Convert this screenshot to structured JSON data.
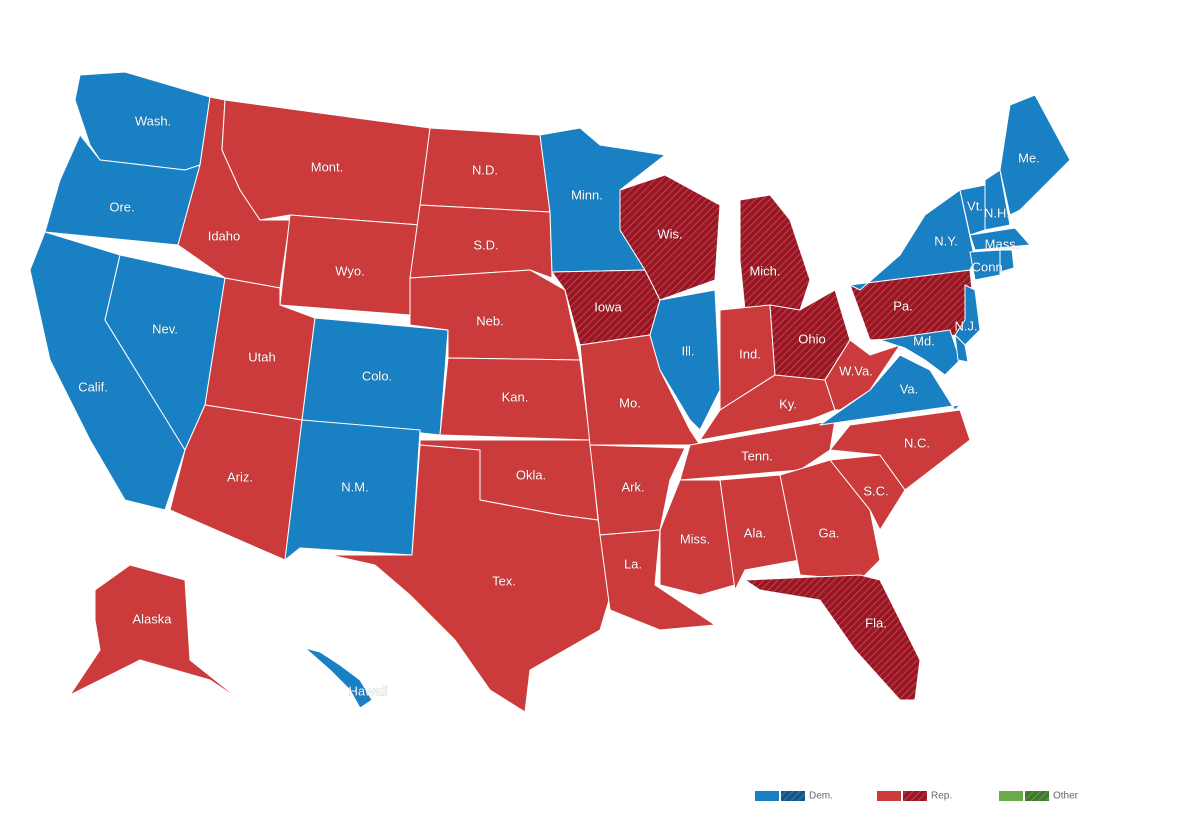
{
  "map": {
    "colors": {
      "dem": "#1a80c4",
      "rep": "#cc3b3b",
      "other": "#6aaa4b"
    },
    "flipped_colors": {
      "dem": "#11568a",
      "rep": "#9b1622",
      "other": "#3f7a2b"
    },
    "states": [
      {
        "label": "Wash.",
        "party": "dem",
        "flipped": false
      },
      {
        "label": "Ore.",
        "party": "dem",
        "flipped": false
      },
      {
        "label": "Calif.",
        "party": "dem",
        "flipped": false
      },
      {
        "label": "Nev.",
        "party": "dem",
        "flipped": false
      },
      {
        "label": "Idaho",
        "party": "rep",
        "flipped": false
      },
      {
        "label": "Mont.",
        "party": "rep",
        "flipped": false
      },
      {
        "label": "Wyo.",
        "party": "rep",
        "flipped": false
      },
      {
        "label": "Utah",
        "party": "rep",
        "flipped": false
      },
      {
        "label": "Colo.",
        "party": "dem",
        "flipped": false
      },
      {
        "label": "Ariz.",
        "party": "rep",
        "flipped": false
      },
      {
        "label": "N.M.",
        "party": "dem",
        "flipped": false
      },
      {
        "label": "N.D.",
        "party": "rep",
        "flipped": false
      },
      {
        "label": "S.D.",
        "party": "rep",
        "flipped": false
      },
      {
        "label": "Neb.",
        "party": "rep",
        "flipped": false
      },
      {
        "label": "Kan.",
        "party": "rep",
        "flipped": false
      },
      {
        "label": "Okla.",
        "party": "rep",
        "flipped": false
      },
      {
        "label": "Tex.",
        "party": "rep",
        "flipped": false
      },
      {
        "label": "Minn.",
        "party": "dem",
        "flipped": false
      },
      {
        "label": "Iowa",
        "party": "rep",
        "flipped": true
      },
      {
        "label": "Mo.",
        "party": "rep",
        "flipped": false
      },
      {
        "label": "Ark.",
        "party": "rep",
        "flipped": false
      },
      {
        "label": "La.",
        "party": "rep",
        "flipped": false
      },
      {
        "label": "Wis.",
        "party": "rep",
        "flipped": true
      },
      {
        "label": "Ill.",
        "party": "dem",
        "flipped": false
      },
      {
        "label": "Mich.",
        "party": "rep",
        "flipped": true
      },
      {
        "label": "Ind.",
        "party": "rep",
        "flipped": false
      },
      {
        "label": "Ohio",
        "party": "rep",
        "flipped": true
      },
      {
        "label": "Ky.",
        "party": "rep",
        "flipped": false
      },
      {
        "label": "Tenn.",
        "party": "rep",
        "flipped": false
      },
      {
        "label": "Miss.",
        "party": "rep",
        "flipped": false
      },
      {
        "label": "Ala.",
        "party": "rep",
        "flipped": false
      },
      {
        "label": "Ga.",
        "party": "rep",
        "flipped": false
      },
      {
        "label": "Fla.",
        "party": "rep",
        "flipped": true
      },
      {
        "label": "S.C.",
        "party": "rep",
        "flipped": false
      },
      {
        "label": "N.C.",
        "party": "rep",
        "flipped": false
      },
      {
        "label": "Va.",
        "party": "dem",
        "flipped": false
      },
      {
        "label": "W.Va.",
        "party": "rep",
        "flipped": false
      },
      {
        "label": "Pa.",
        "party": "rep",
        "flipped": true
      },
      {
        "label": "N.Y.",
        "party": "dem",
        "flipped": false
      },
      {
        "label": "N.J.",
        "party": "dem",
        "flipped": false
      },
      {
        "label": "Md.",
        "party": "dem",
        "flipped": false
      },
      {
        "label": "Vt.",
        "party": "dem",
        "flipped": false
      },
      {
        "label": "N.H.",
        "party": "dem",
        "flipped": false
      },
      {
        "label": "Me.",
        "party": "dem",
        "flipped": false
      },
      {
        "label": "Mass.",
        "party": "dem",
        "flipped": false
      },
      {
        "label": "Conn.",
        "party": "dem",
        "flipped": false
      },
      {
        "party": "dem",
        "flipped": false
      },
      {
        "party": "dem",
        "flipped": false
      },
      {
        "label": "Alaska",
        "party": "rep",
        "flipped": false
      },
      {
        "label": "Hawaii",
        "party": "dem",
        "flipped": false
      }
    ],
    "legend": [
      {
        "label": "Dem.",
        "party": "dem"
      },
      {
        "label": "Rep.",
        "party": "rep"
      },
      {
        "label": "Other",
        "party": "other"
      }
    ]
  }
}
